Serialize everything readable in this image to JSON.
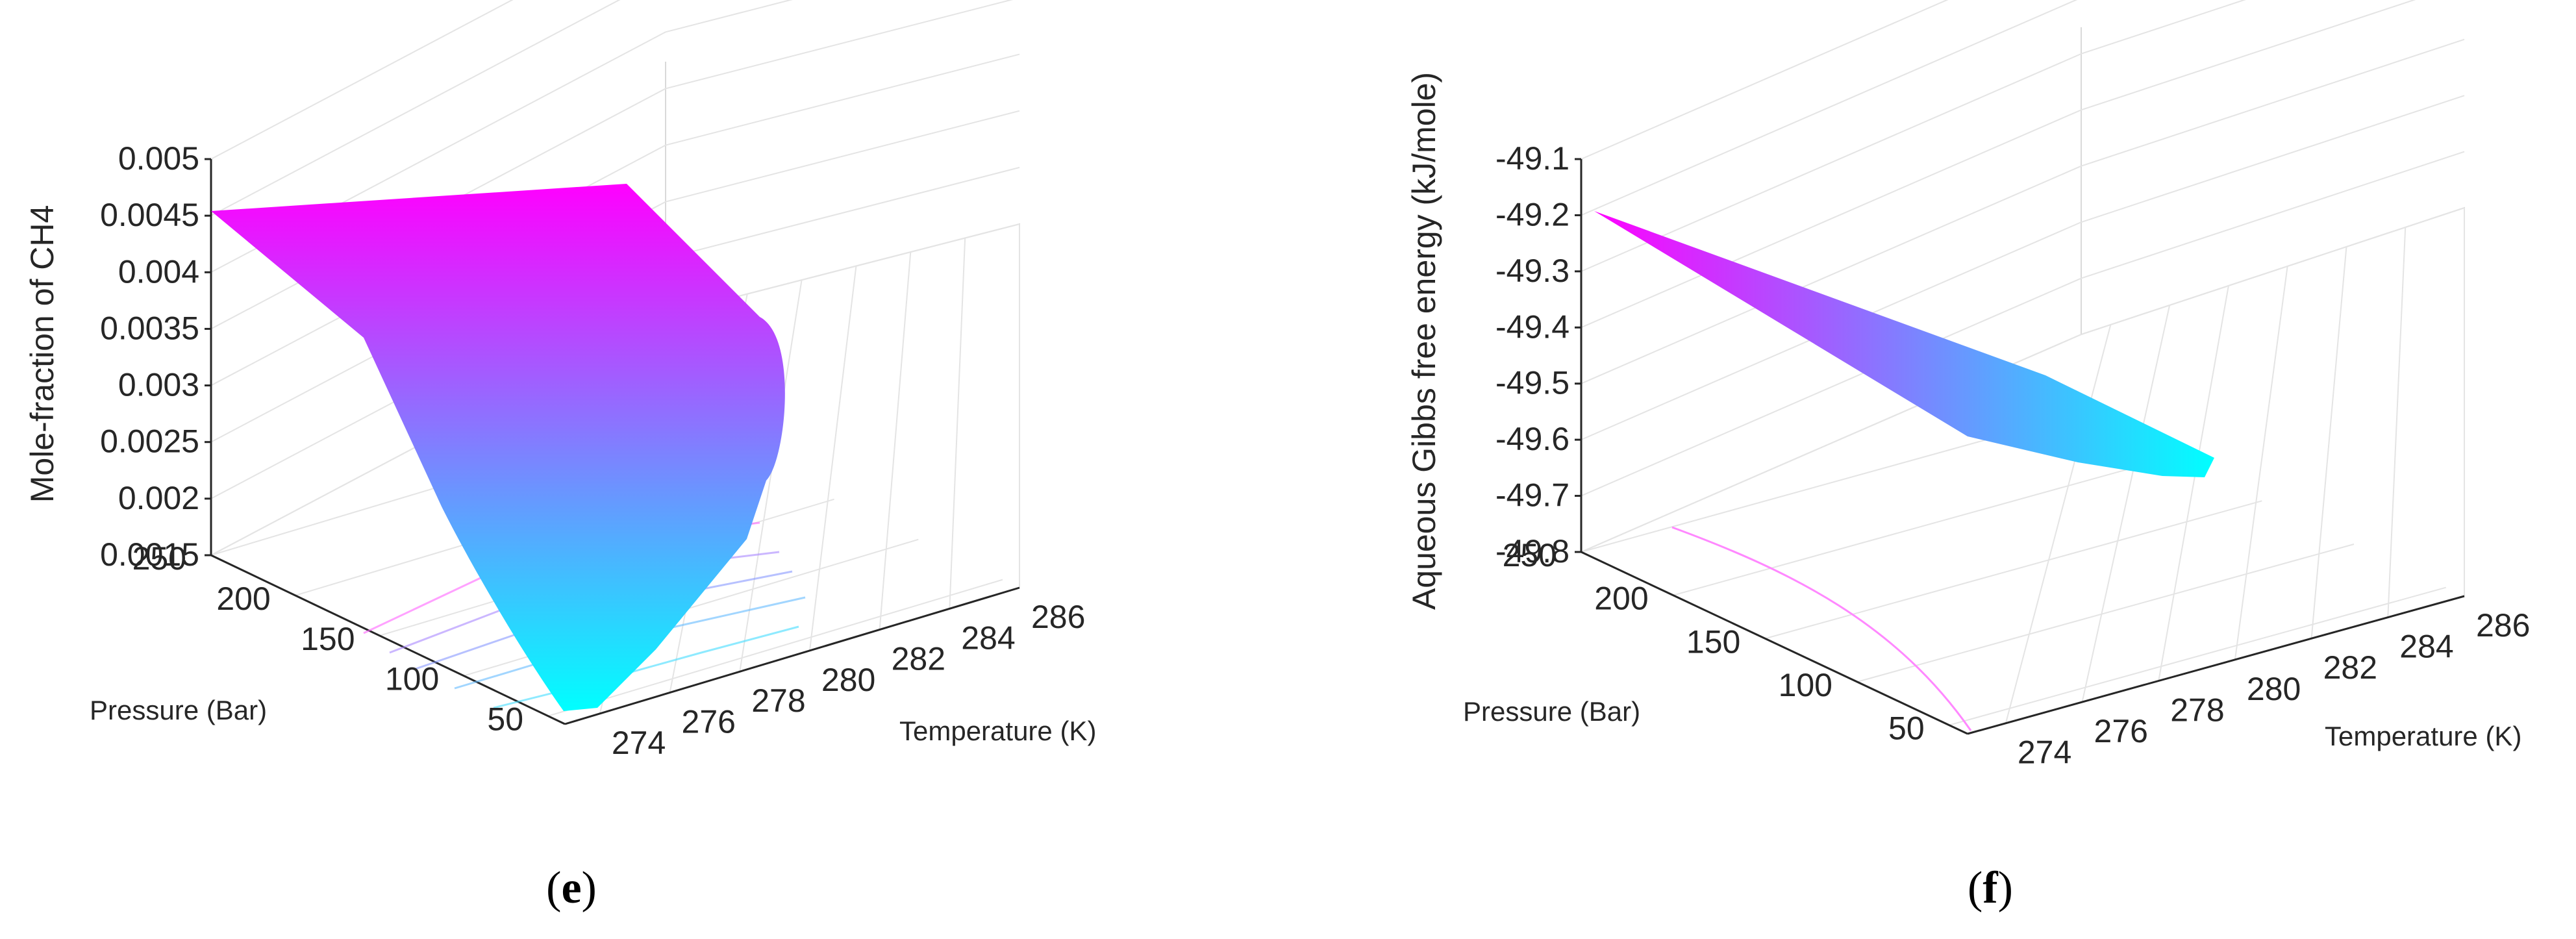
{
  "chart_data": [
    {
      "type": "surface3d",
      "panel": "(e)",
      "panel_letter": "e",
      "xlabel": "Temperature (K)",
      "ylabel": "Pressure (Bar)",
      "zlabel": "Mole-fraction of CH4",
      "xlim": [
        273,
        286
      ],
      "ylim": [
        40,
        250
      ],
      "zlim": [
        0.0015,
        0.005
      ],
      "xticks": [
        "274",
        "276",
        "278",
        "280",
        "282",
        "284",
        "286"
      ],
      "yticks": [
        "50",
        "100",
        "150",
        "200",
        "250"
      ],
      "zticks": [
        "0.0015",
        "0.002",
        "0.0025",
        "0.003",
        "0.0035",
        "0.004",
        "0.0045",
        "0.005"
      ],
      "grid": true,
      "colormap": [
        "#00ffff",
        "#ff00ff"
      ],
      "boundary": [
        {
          "T": 273.4,
          "P": 250,
          "z": 0.0046
        },
        {
          "T": 280,
          "P": 250,
          "z": 0.00465
        },
        {
          "T": 285,
          "P": 220,
          "z": 0.0039
        },
        {
          "T": 285.8,
          "P": 190,
          "z": 0.0033
        },
        {
          "T": 285.5,
          "P": 150,
          "z": 0.0026
        },
        {
          "T": 284,
          "P": 100,
          "z": 0.0019
        },
        {
          "T": 279,
          "P": 45,
          "z": 0.0012
        },
        {
          "T": 277.2,
          "P": 43,
          "z": 0.0012
        },
        {
          "T": 276,
          "P": 80,
          "z": 0.0019
        },
        {
          "T": 274.5,
          "P": 170,
          "z": 0.0033
        }
      ]
    },
    {
      "type": "surface3d",
      "panel": "(f)",
      "panel_letter": "f",
      "xlabel": "Temperature (K)",
      "ylabel": "Pressure (Bar)",
      "zlabel": "Aqueous Gibbs free energy (kJ/mole)",
      "xlim": [
        273,
        286
      ],
      "ylim": [
        40,
        250
      ],
      "zlim": [
        -49.8,
        -49.1
      ],
      "xticks": [
        "274",
        "276",
        "278",
        "280",
        "282",
        "284",
        "286"
      ],
      "yticks": [
        "50",
        "100",
        "150",
        "200",
        "250"
      ],
      "zticks": [
        "-49.1",
        "-49.2",
        "-49.3",
        "-49.4",
        "-49.5",
        "-49.6",
        "-49.7",
        "-49.8"
      ],
      "grid": true,
      "colormap": [
        "#ff00ff",
        "#00ffff"
      ],
      "boundary": [
        {
          "T": 273.4,
          "P": 250,
          "z": -49.22
        },
        {
          "T": 276.3,
          "P": 180,
          "z": -49.43
        },
        {
          "T": 279.4,
          "P": 110,
          "z": -49.61
        },
        {
          "T": 280.6,
          "P": 72,
          "z": -49.66
        },
        {
          "T": 281.4,
          "P": 58,
          "z": -49.67
        },
        {
          "T": 281.5,
          "P": 68,
          "z": -49.57
        },
        {
          "T": 279.7,
          "P": 120,
          "z": -49.47
        },
        {
          "T": 276.8,
          "P": 185,
          "z": -49.34
        }
      ]
    }
  ]
}
